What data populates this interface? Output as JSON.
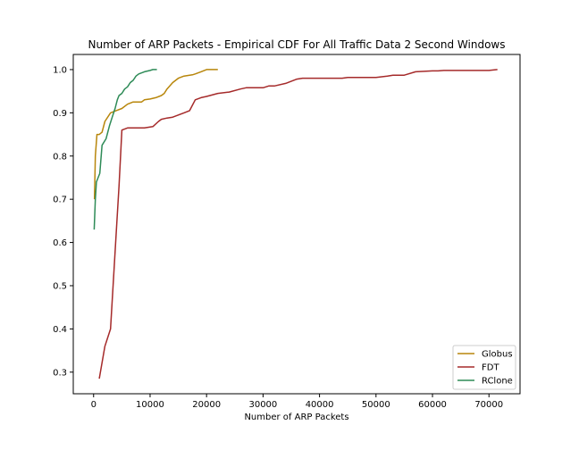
{
  "chart_data": {
    "type": "line",
    "title": "Number of ARP Packets - Empirical CDF For All Traffic Data 2 Second Windows",
    "xlabel": "Number of ARP Packets",
    "ylabel": "",
    "xlim": [
      -3600,
      75500
    ],
    "ylim": [
      0.25,
      1.035
    ],
    "xticks": [
      0,
      10000,
      20000,
      30000,
      40000,
      50000,
      60000,
      70000
    ],
    "xtick_labels": [
      "0",
      "10000",
      "20000",
      "30000",
      "40000",
      "50000",
      "60000",
      "70000"
    ],
    "yticks": [
      0.3,
      0.4,
      0.5,
      0.6,
      0.7,
      0.8,
      0.9,
      1.0
    ],
    "ytick_labels": [
      "0.3",
      "0.4",
      "0.5",
      "0.6",
      "0.7",
      "0.8",
      "0.9",
      "1.0"
    ],
    "grid": false,
    "legend_position": "bottom-right",
    "series": [
      {
        "name": "Globus",
        "color": "#b8860b",
        "x": [
          150,
          300,
          600,
          1000,
          1500,
          2000,
          3000,
          4000,
          5000,
          6000,
          7000,
          8500,
          9000,
          10000,
          11000,
          12000,
          12500,
          13000,
          14000,
          15000,
          16000,
          17500,
          18000,
          19000,
          20000,
          21000,
          22000
        ],
        "y": [
          0.7,
          0.8,
          0.85,
          0.85,
          0.855,
          0.88,
          0.9,
          0.905,
          0.91,
          0.92,
          0.925,
          0.925,
          0.93,
          0.932,
          0.935,
          0.94,
          0.945,
          0.955,
          0.97,
          0.98,
          0.985,
          0.988,
          0.99,
          0.995,
          1.0,
          1.0,
          1.0
        ]
      },
      {
        "name": "FDT",
        "color": "#a52a2a",
        "x": [
          1000,
          2000,
          3000,
          4000,
          4500,
          5000,
          6000,
          7000,
          9000,
          10500,
          11500,
          12000,
          13000,
          14000,
          15000,
          16000,
          17000,
          18000,
          19000,
          20000,
          22000,
          24000,
          26000,
          27000,
          30000,
          31000,
          32000,
          34000,
          36000,
          37000,
          40000,
          44000,
          45000,
          50000,
          52000,
          53000,
          55000,
          57000,
          60000,
          61000,
          62000,
          66000,
          70000,
          71500
        ],
        "y": [
          0.285,
          0.36,
          0.4,
          0.62,
          0.73,
          0.86,
          0.865,
          0.865,
          0.865,
          0.868,
          0.88,
          0.885,
          0.888,
          0.89,
          0.895,
          0.9,
          0.905,
          0.93,
          0.935,
          0.938,
          0.945,
          0.948,
          0.955,
          0.958,
          0.958,
          0.962,
          0.962,
          0.968,
          0.978,
          0.98,
          0.98,
          0.98,
          0.982,
          0.982,
          0.985,
          0.987,
          0.987,
          0.995,
          0.997,
          0.997,
          0.998,
          0.998,
          0.998,
          1.0
        ]
      },
      {
        "name": "RClone",
        "color": "#2e8b57",
        "x": [
          100,
          300,
          500,
          800,
          1100,
          1500,
          2200,
          2800,
          3300,
          3800,
          4200,
          4500,
          5000,
          5500,
          6000,
          6500,
          7000,
          7500,
          8000,
          9000,
          10000,
          10500,
          11200
        ],
        "y": [
          0.63,
          0.7,
          0.74,
          0.75,
          0.76,
          0.825,
          0.84,
          0.87,
          0.89,
          0.91,
          0.93,
          0.94,
          0.945,
          0.955,
          0.96,
          0.97,
          0.975,
          0.985,
          0.99,
          0.995,
          0.998,
          1.0,
          1.0
        ]
      }
    ]
  }
}
